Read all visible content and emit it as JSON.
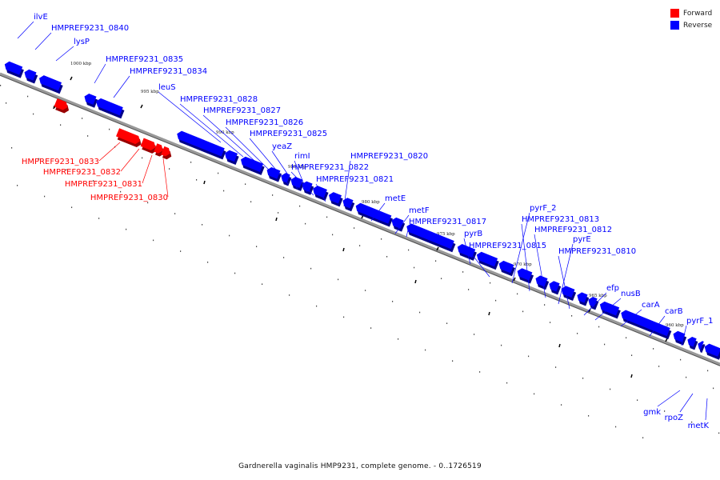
{
  "legend": {
    "forward": {
      "label": "Forward",
      "color": "#ff0000"
    },
    "reverse": {
      "label": "Reverse",
      "color": "#0000ff"
    }
  },
  "caption": "Gardnerella vaginalis HMP9231, complete genome. - 0..1726519",
  "colors": {
    "forward": "#ff0000",
    "reverse": "#0000ff",
    "axis": "#999999"
  },
  "ticks": [
    "1000 kbp",
    "995 kbp",
    "990 kbp",
    "985 kbp",
    "980 kbp",
    "975 kbp",
    "970 kbp",
    "965 kbp",
    "960 kbp"
  ],
  "genes": [
    {
      "name": "ilvE",
      "strand": "reverse"
    },
    {
      "name": "HMPREF9231_0840",
      "strand": "reverse"
    },
    {
      "name": "lysP",
      "strand": "reverse"
    },
    {
      "name": "HMPREF9231_0835",
      "strand": "reverse"
    },
    {
      "name": "HMPREF9231_0834",
      "strand": "reverse"
    },
    {
      "name": "leuS",
      "strand": "reverse"
    },
    {
      "name": "HMPREF9231_0828",
      "strand": "reverse"
    },
    {
      "name": "HMPREF9231_0827",
      "strand": "reverse"
    },
    {
      "name": "HMPREF9231_0826",
      "strand": "reverse"
    },
    {
      "name": "HMPREF9231_0825",
      "strand": "reverse"
    },
    {
      "name": "yeaZ",
      "strand": "reverse"
    },
    {
      "name": "rimI",
      "strand": "reverse"
    },
    {
      "name": "HMPREF9231_0822",
      "strand": "reverse"
    },
    {
      "name": "HMPREF9231_0821",
      "strand": "reverse"
    },
    {
      "name": "HMPREF9231_0820",
      "strand": "reverse"
    },
    {
      "name": "metE",
      "strand": "reverse"
    },
    {
      "name": "metF",
      "strand": "reverse"
    },
    {
      "name": "HMPREF9231_0817",
      "strand": "reverse"
    },
    {
      "name": "pyrB",
      "strand": "reverse"
    },
    {
      "name": "HMPREF9231_0815",
      "strand": "reverse"
    },
    {
      "name": "pyrF_2",
      "strand": "reverse"
    },
    {
      "name": "HMPREF9231_0813",
      "strand": "reverse"
    },
    {
      "name": "HMPREF9231_0812",
      "strand": "reverse"
    },
    {
      "name": "pyrE",
      "strand": "reverse"
    },
    {
      "name": "HMPREF9231_0810",
      "strand": "reverse"
    },
    {
      "name": "efp",
      "strand": "reverse"
    },
    {
      "name": "nusB",
      "strand": "reverse"
    },
    {
      "name": "carA",
      "strand": "reverse"
    },
    {
      "name": "carB",
      "strand": "reverse"
    },
    {
      "name": "pyrF_1",
      "strand": "reverse"
    },
    {
      "name": "HMPREF9231_0833",
      "strand": "forward"
    },
    {
      "name": "HMPREF9231_0832",
      "strand": "forward"
    },
    {
      "name": "HMPREF9231_0831",
      "strand": "forward"
    },
    {
      "name": "HMPREF9231_0830",
      "strand": "forward"
    },
    {
      "name": "gmk",
      "strand": "reverse"
    },
    {
      "name": "rpoZ",
      "strand": "reverse"
    },
    {
      "name": "metK",
      "strand": "reverse"
    }
  ]
}
